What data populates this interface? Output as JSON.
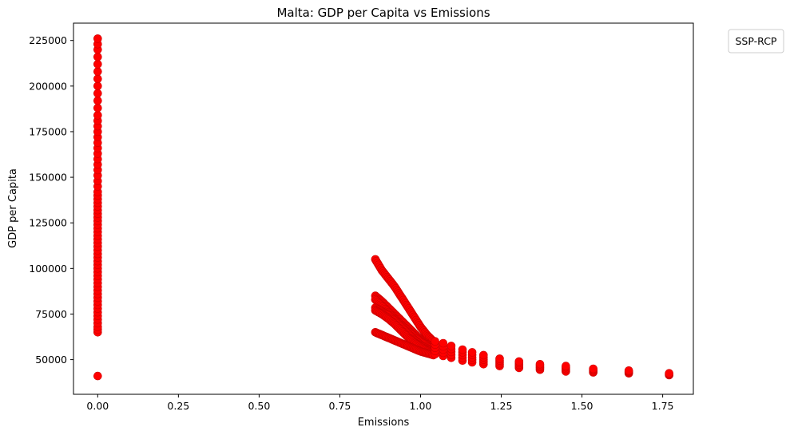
{
  "chart_data": {
    "type": "scatter",
    "title": "Malta: GDP per Capita vs Emissions",
    "xlabel": "Emissions",
    "ylabel": "GDP per Capita",
    "xlim": [
      -0.075,
      1.845
    ],
    "ylim": [
      31000,
      234500
    ],
    "xticks": [
      "0.00",
      "0.25",
      "0.50",
      "0.75",
      "1.00",
      "1.25",
      "1.50",
      "1.75"
    ],
    "xtick_values": [
      0,
      0.25,
      0.5,
      0.75,
      1.0,
      1.25,
      1.5,
      1.75
    ],
    "yticks": [
      "50000",
      "75000",
      "100000",
      "125000",
      "150000",
      "175000",
      "200000",
      "225000"
    ],
    "ytick_values": [
      50000,
      75000,
      100000,
      125000,
      150000,
      175000,
      200000,
      225000
    ],
    "grid": false,
    "legend": {
      "title": "SSP-RCP",
      "placement": "outside-top-right",
      "entries": []
    },
    "marker_color": "#ff0000",
    "marker_edge_color": "#cc0000",
    "series": [
      {
        "points_zero_emissions_x": 0,
        "zero_emissions_y": [
          41000,
          65000,
          66500,
          68000,
          70000,
          72000,
          74000,
          76000,
          78000,
          80000,
          82000,
          84000,
          86000,
          88000,
          90000,
          92000,
          94000,
          96000,
          98000,
          100000,
          102000,
          104000,
          106000,
          108000,
          110000,
          112000,
          114000,
          116000,
          118000,
          120000,
          122000,
          124000,
          126000,
          128000,
          130000,
          132000,
          134000,
          136000,
          138000,
          140000,
          142000,
          145000,
          148000,
          151000,
          154000,
          157000,
          160000,
          163000,
          166000,
          169000,
          172000,
          175000,
          178000,
          181000,
          184000,
          188000,
          192000,
          196000,
          200000,
          204000,
          208000,
          212000,
          216000,
          220000,
          223000,
          226000
        ],
        "tail_x": [
          1.045,
          1.07,
          1.095,
          1.13,
          1.16,
          1.195,
          1.245,
          1.305,
          1.37,
          1.45,
          1.535,
          1.645,
          1.77
        ],
        "tail_y": [
          [
            53000,
            60000
          ],
          [
            52000,
            59000
          ],
          [
            51000,
            57500
          ],
          [
            49500,
            55500
          ],
          [
            48500,
            54000
          ],
          [
            47500,
            52500
          ],
          [
            46500,
            50500
          ],
          [
            45500,
            49000
          ],
          [
            44500,
            47500
          ],
          [
            43500,
            46500
          ],
          [
            43000,
            45000
          ],
          [
            42500,
            44000
          ],
          [
            41500,
            42500
          ]
        ],
        "curves": [
          {
            "x": [
              0.86,
              0.88,
              0.9,
              0.92,
              0.94,
              0.96,
              0.98,
              1.0,
              1.02,
              1.04
            ],
            "y": [
              105000,
              99000,
              94500,
              90000,
              84500,
              79000,
              73500,
              68000,
              63500,
              60000
            ]
          },
          {
            "x": [
              0.86,
              0.88,
              0.9,
              0.92,
              0.94,
              0.96,
              0.98,
              1.0,
              1.02,
              1.04
            ],
            "y": [
              85000,
              82000,
              78500,
              75000,
              71500,
              68000,
              64500,
              61000,
              58500,
              57000
            ]
          },
          {
            "x": [
              0.86,
              0.88,
              0.9,
              0.92,
              0.94,
              0.96,
              0.98,
              1.0,
              1.02,
              1.04
            ],
            "y": [
              83000,
              79500,
              76000,
              72500,
              69000,
              66000,
              63000,
              60000,
              57500,
              55500
            ]
          },
          {
            "x": [
              0.86,
              0.88,
              0.9,
              0.92,
              0.94,
              0.96,
              0.98,
              1.0,
              1.02,
              1.04
            ],
            "y": [
              78500,
              76500,
              74500,
              71500,
              68000,
              64500,
              61000,
              58000,
              56000,
              54500
            ]
          },
          {
            "x": [
              0.86,
              0.88,
              0.9,
              0.92,
              0.94,
              0.96,
              0.98,
              1.0,
              1.02,
              1.04
            ],
            "y": [
              77000,
              75000,
              72500,
              69500,
              66000,
              62500,
              59500,
              57000,
              55000,
              53500
            ]
          },
          {
            "x": [
              0.86,
              0.88,
              0.9,
              0.92,
              0.94,
              0.96,
              0.98,
              1.0,
              1.02,
              1.04
            ],
            "y": [
              65000,
              63500,
              62000,
              60500,
              59000,
              57500,
              56000,
              54500,
              53500,
              52500
            ]
          }
        ]
      }
    ]
  }
}
